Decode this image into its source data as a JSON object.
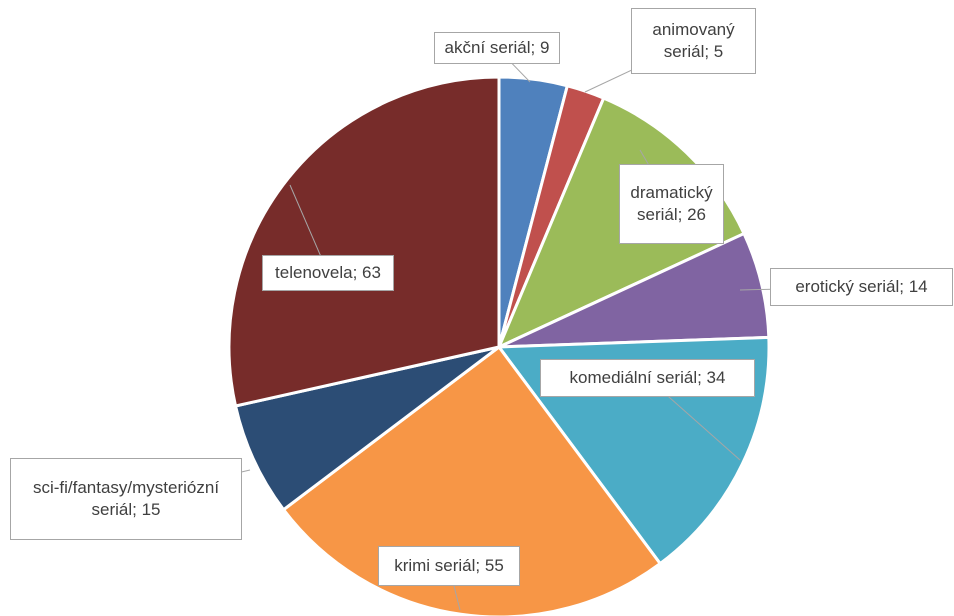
{
  "chart_data": {
    "type": "pie",
    "categories": [
      "akční seriál",
      "animovaný seriál",
      "dramatický seriál",
      "erotický seriál",
      "komediální seriál",
      "krimi seriál",
      "sci-fi/fantasy/mysteriózní seriál",
      "telenovela"
    ],
    "values": [
      9,
      5,
      26,
      14,
      34,
      55,
      15,
      63
    ],
    "separator": "; ",
    "colors": [
      "#4f81bd",
      "#c0504d",
      "#9bbb59",
      "#8064a2",
      "#4bacc6",
      "#f79646",
      "#2c4d75",
      "#772c2a"
    ]
  }
}
